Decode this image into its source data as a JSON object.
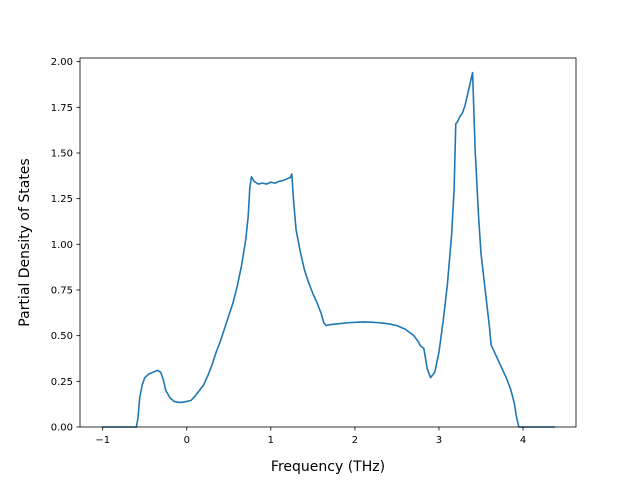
{
  "chart_data": {
    "type": "line",
    "title": "",
    "xlabel": "Frequency (THz)",
    "ylabel": "Partial Density of States",
    "xlim": [
      -1.27,
      4.63
    ],
    "ylim": [
      0.0,
      2.02
    ],
    "xticks": [
      -1,
      0,
      1,
      2,
      3,
      4
    ],
    "xtick_labels": [
      "−1",
      "0",
      "1",
      "2",
      "3",
      "4"
    ],
    "yticks": [
      0.0,
      0.25,
      0.5,
      0.75,
      1.0,
      1.25,
      1.5,
      1.75,
      2.0
    ],
    "ytick_labels": [
      "0.00",
      "0.25",
      "0.50",
      "0.75",
      "1.00",
      "1.25",
      "1.50",
      "1.75",
      "2.00"
    ],
    "grid": false,
    "line_color": "#1f77b4",
    "series": [
      {
        "name": "",
        "x": [
          -1.0,
          -0.6,
          -0.58,
          -0.56,
          -0.53,
          -0.5,
          -0.45,
          -0.4,
          -0.35,
          -0.31,
          -0.28,
          -0.25,
          -0.2,
          -0.15,
          -0.1,
          -0.05,
          0.0,
          0.05,
          0.1,
          0.15,
          0.2,
          0.25,
          0.3,
          0.35,
          0.4,
          0.45,
          0.5,
          0.55,
          0.6,
          0.65,
          0.7,
          0.73,
          0.75,
          0.77,
          0.8,
          0.85,
          0.9,
          0.95,
          1.0,
          1.05,
          1.1,
          1.15,
          1.2,
          1.23,
          1.25,
          1.27,
          1.3,
          1.35,
          1.4,
          1.45,
          1.5,
          1.55,
          1.6,
          1.63,
          1.66,
          1.7,
          1.8,
          1.9,
          2.0,
          2.1,
          2.2,
          2.3,
          2.4,
          2.5,
          2.6,
          2.7,
          2.75,
          2.78,
          2.82,
          2.86,
          2.9,
          2.95,
          3.0,
          3.05,
          3.1,
          3.15,
          3.18,
          3.2,
          3.22,
          3.25,
          3.28,
          3.31,
          3.34,
          3.37,
          3.4,
          3.43,
          3.47,
          3.5,
          3.55,
          3.6,
          3.62,
          3.65,
          3.7,
          3.75,
          3.8,
          3.85,
          3.88,
          3.9,
          3.92,
          3.95,
          4.0,
          4.1,
          4.2,
          4.37
        ],
        "y": [
          0.0,
          0.0,
          0.05,
          0.16,
          0.23,
          0.27,
          0.29,
          0.3,
          0.31,
          0.3,
          0.26,
          0.2,
          0.16,
          0.14,
          0.135,
          0.135,
          0.14,
          0.145,
          0.17,
          0.2,
          0.23,
          0.28,
          0.34,
          0.41,
          0.47,
          0.54,
          0.61,
          0.68,
          0.77,
          0.88,
          1.02,
          1.15,
          1.31,
          1.37,
          1.345,
          1.33,
          1.335,
          1.33,
          1.34,
          1.335,
          1.345,
          1.35,
          1.36,
          1.365,
          1.385,
          1.24,
          1.08,
          0.96,
          0.86,
          0.79,
          0.73,
          0.68,
          0.62,
          0.57,
          0.555,
          0.56,
          0.565,
          0.57,
          0.573,
          0.575,
          0.574,
          0.57,
          0.565,
          0.555,
          0.535,
          0.5,
          0.47,
          0.445,
          0.43,
          0.32,
          0.27,
          0.3,
          0.41,
          0.58,
          0.78,
          1.05,
          1.3,
          1.66,
          1.67,
          1.7,
          1.72,
          1.76,
          1.82,
          1.88,
          1.94,
          1.52,
          1.16,
          0.95,
          0.75,
          0.55,
          0.45,
          0.42,
          0.37,
          0.32,
          0.27,
          0.21,
          0.16,
          0.12,
          0.06,
          0.0,
          0.0,
          0.0,
          0.0,
          0.0
        ]
      }
    ]
  }
}
